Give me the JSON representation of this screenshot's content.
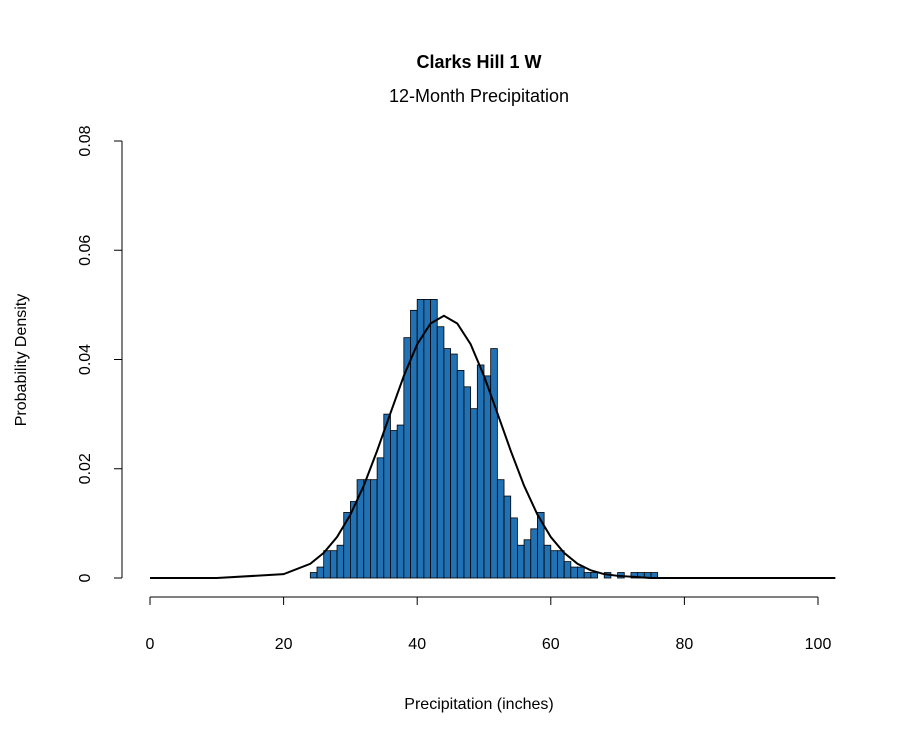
{
  "chart_data": {
    "type": "histogram",
    "title": "Clarks Hill 1 W",
    "subtitle": "12-Month Precipitation",
    "x_label": "Precipitation (inches)",
    "y_label": "Probability Density",
    "color": "#2171b5",
    "bins": [
      24,
      25,
      26,
      27,
      28,
      29,
      30,
      31,
      32,
      33,
      34,
      35,
      36,
      37,
      38,
      39,
      40,
      41,
      42,
      43,
      44,
      45,
      46,
      47,
      48,
      49,
      50,
      51,
      52,
      53,
      54,
      55,
      56,
      57,
      58,
      59,
      60,
      61,
      62,
      63,
      64,
      65,
      66,
      67,
      68,
      69,
      70,
      71,
      72,
      73,
      74,
      75,
      76,
      77
    ],
    "values": [
      0.001,
      0.002,
      0.005,
      0.005,
      0.006,
      0.012,
      0.014,
      0.018,
      0.018,
      0.018,
      0.022,
      0.03,
      0.027,
      0.028,
      0.044,
      0.049,
      0.051,
      0.051,
      0.051,
      0.046,
      0.042,
      0.041,
      0.038,
      0.035,
      0.031,
      0.039,
      0.037,
      0.042,
      0.018,
      0.015,
      0.011,
      0.006,
      0.007,
      0.009,
      0.012,
      0.006,
      0.005,
      0.005,
      0.003,
      0.002,
      0.002,
      0.001,
      0.001,
      0,
      0.001,
      0,
      0.001,
      0,
      0.001,
      0.001,
      0.001,
      0.001,
      0
    ],
    "density": {
      "color": "#000000",
      "x": [
        0,
        10,
        20,
        24,
        26,
        28,
        30,
        32,
        34,
        36,
        38,
        40,
        42,
        44,
        46,
        48,
        50,
        52,
        54,
        56,
        58,
        60,
        62,
        64,
        66,
        68,
        70,
        75,
        80,
        90,
        102.6
      ],
      "y": [
        0,
        0,
        0.0007,
        0.0026,
        0.0046,
        0.0075,
        0.0116,
        0.0169,
        0.0233,
        0.0302,
        0.037,
        0.0428,
        0.0466,
        0.048,
        0.0466,
        0.0428,
        0.037,
        0.0302,
        0.0233,
        0.0169,
        0.0116,
        0.0075,
        0.0046,
        0.0026,
        0.0014,
        0.0007,
        0.0004,
        0,
        0,
        0,
        0
      ]
    },
    "xlim": [
      0,
      100
    ],
    "xticks": [
      0,
      20,
      40,
      60,
      80,
      100
    ],
    "ylim": [
      0,
      0.08
    ],
    "yticks": [
      0,
      0.02,
      0.04,
      0.06,
      0.08
    ]
  }
}
